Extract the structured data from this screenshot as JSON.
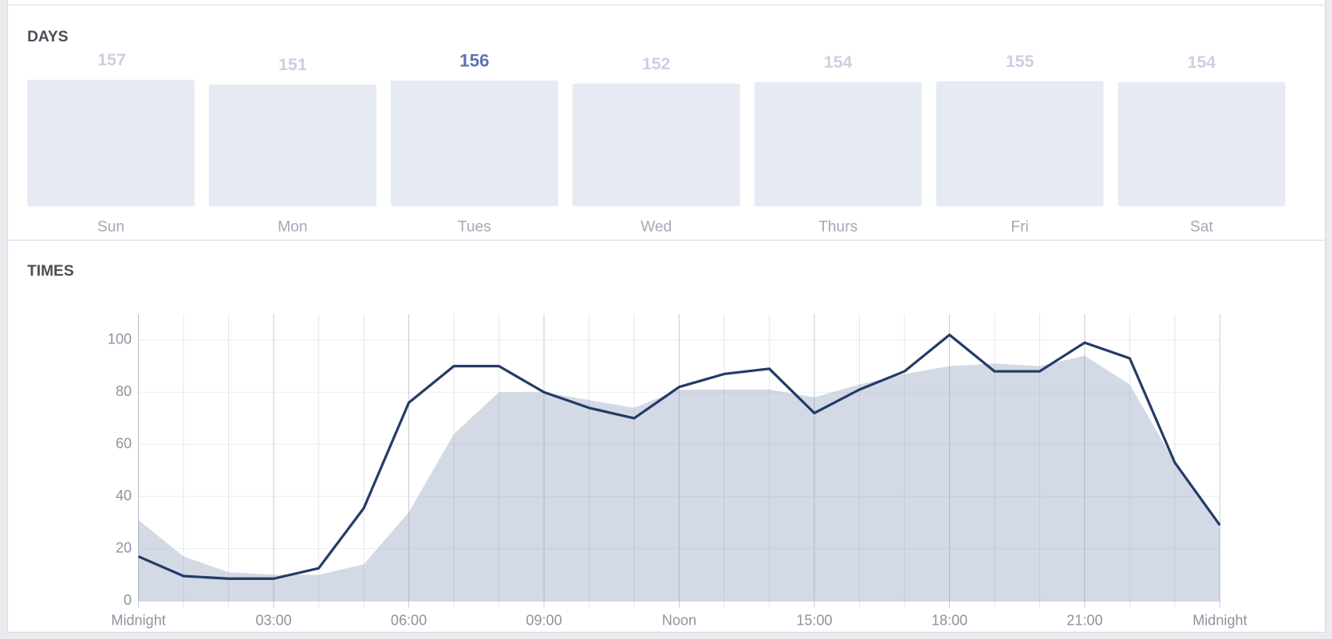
{
  "chart_data": [
    {
      "type": "bar",
      "title": "DAYS",
      "categories": [
        "Sun",
        "Mon",
        "Tues",
        "Wed",
        "Thurs",
        "Fri",
        "Sat"
      ],
      "values": [
        157,
        151,
        156,
        152,
        154,
        155,
        154
      ],
      "color": "#e6eaf3",
      "label_color": "#c9d0e0",
      "highlight_index": 2,
      "highlight_color": "#5b74b4"
    },
    {
      "type": "line",
      "title": "TIMES",
      "x": [
        0,
        1,
        2,
        3,
        4,
        5,
        6,
        7,
        8,
        9,
        10,
        11,
        12,
        13,
        14,
        15,
        16,
        17,
        18,
        19,
        20,
        21,
        22,
        23,
        24
      ],
      "series": [
        {
          "type": "line",
          "color": "#233b67",
          "values": [
            17,
            9.5,
            8.5,
            8.5,
            12.5,
            35.5,
            76,
            90,
            90,
            80,
            74,
            70,
            82,
            87,
            89,
            72,
            81,
            88,
            102,
            88,
            88,
            99,
            93,
            53,
            29
          ]
        },
        {
          "type": "area",
          "color": "#d3dae6",
          "values": [
            31,
            17,
            11,
            10,
            10,
            14,
            34,
            64,
            80,
            80,
            77,
            74,
            81,
            81,
            81,
            78,
            83,
            87,
            90,
            91,
            90,
            94,
            83,
            53,
            28
          ]
        }
      ],
      "xlim": [
        0,
        24
      ],
      "xticks": [
        {
          "value": 0,
          "label": "Midnight"
        },
        {
          "value": 3,
          "label": "03:00"
        },
        {
          "value": 6,
          "label": "06:00"
        },
        {
          "value": 9,
          "label": "09:00"
        },
        {
          "value": 12,
          "label": "Noon"
        },
        {
          "value": 15,
          "label": "15:00"
        },
        {
          "value": 18,
          "label": "18:00"
        },
        {
          "value": 21,
          "label": "21:00"
        },
        {
          "value": 24,
          "label": "Midnight"
        }
      ],
      "ylim": [
        0,
        110
      ],
      "yticks": [
        0,
        20,
        40,
        60,
        80,
        100
      ],
      "grid": true
    }
  ]
}
